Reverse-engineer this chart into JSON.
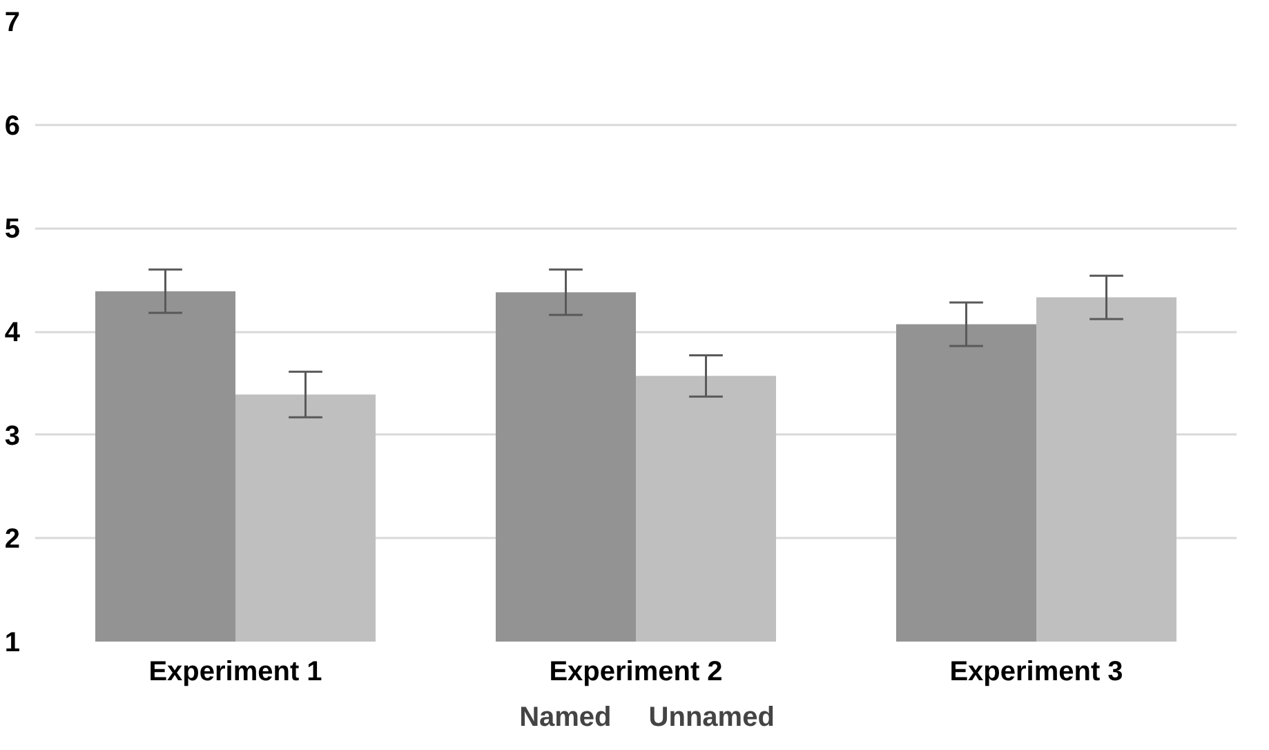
{
  "chart_data": {
    "type": "bar",
    "categories": [
      "Experiment 1",
      "Experiment 2",
      "Experiment 3"
    ],
    "series": [
      {
        "name": "Named",
        "color": "#939393",
        "values": [
          4.39,
          4.38,
          4.07
        ],
        "errors": [
          0.21,
          0.22,
          0.21
        ]
      },
      {
        "name": "Unnamed",
        "color": "#bfbfbf",
        "values": [
          3.39,
          3.57,
          4.33
        ],
        "errors": [
          0.22,
          0.2,
          0.21
        ]
      }
    ],
    "ylim": [
      1,
      7
    ],
    "yticks": [
      1,
      2,
      3,
      4,
      5,
      6,
      7
    ],
    "grid": "y",
    "legend": "bottom"
  }
}
